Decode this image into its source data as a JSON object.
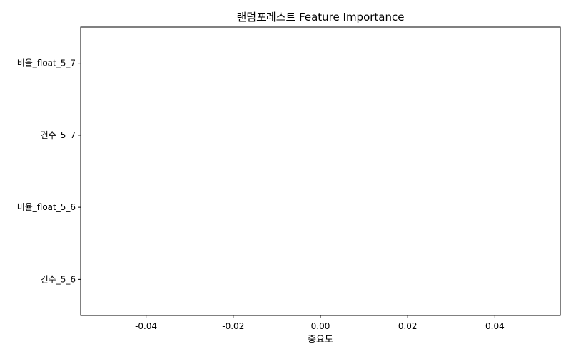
{
  "chart_data": {
    "type": "bar",
    "orientation": "horizontal",
    "title": "랜덤포레스트 Feature Importance",
    "xlabel": "중요도",
    "ylabel": "",
    "categories": [
      "건수_5_6",
      "비율_float_5_6",
      "건수_5_7",
      "비율_float_5_7"
    ],
    "values": [
      0,
      0,
      0,
      0
    ],
    "xlim": [
      -0.055,
      0.055
    ],
    "x_ticks": [
      -0.04,
      -0.02,
      0.0,
      0.02,
      0.04
    ],
    "x_tick_labels": [
      "-0.04",
      "-0.02",
      "0.00",
      "0.02",
      "0.04"
    ],
    "grid": false,
    "colors": {
      "axes": "#000000",
      "background": "#ffffff",
      "bar": "#1f77b4"
    }
  }
}
